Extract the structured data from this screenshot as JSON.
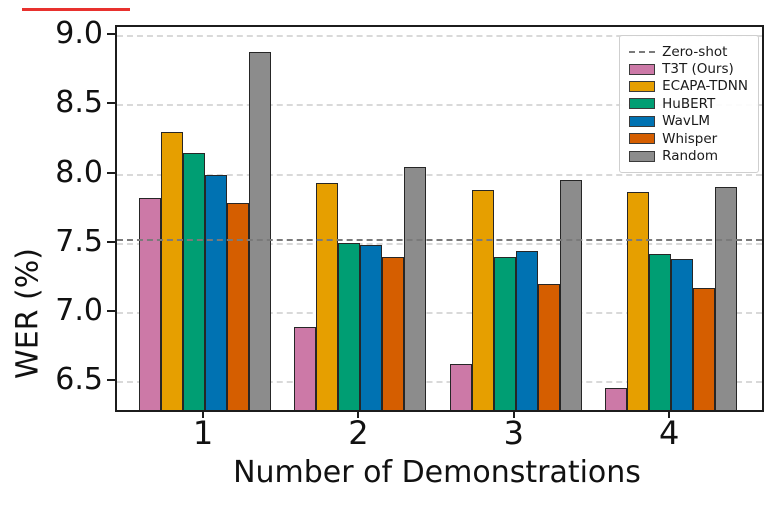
{
  "chart_data": {
    "type": "bar",
    "title": "",
    "xlabel": "Number of Demonstrations",
    "ylabel": "WER (%)",
    "categories": [
      "1",
      "2",
      "3",
      "4"
    ],
    "series": [
      {
        "name": "T3T (Ours)",
        "color": "#CC79A7",
        "values": [
          7.82,
          6.89,
          6.62,
          6.45
        ]
      },
      {
        "name": "ECAPA-TDNN",
        "color": "#E69F00",
        "values": [
          8.3,
          7.93,
          7.88,
          7.87
        ]
      },
      {
        "name": "HuBERT",
        "color": "#009E73",
        "values": [
          8.15,
          7.5,
          7.4,
          7.42
        ]
      },
      {
        "name": "WavLM",
        "color": "#0072B2",
        "values": [
          7.99,
          7.48,
          7.44,
          7.38
        ]
      },
      {
        "name": "Whisper",
        "color": "#D55E00",
        "values": [
          7.79,
          7.4,
          7.2,
          7.17
        ]
      },
      {
        "name": "Random",
        "color": "#8C8C8C",
        "values": [
          8.88,
          8.05,
          7.95,
          7.9
        ]
      }
    ],
    "reference_line": {
      "label": "Zero-shot",
      "value": 7.53,
      "color": "#7a7a7a",
      "style": "dashed"
    },
    "yticks": [
      6.5,
      7.0,
      7.5,
      8.0,
      8.5,
      9.0
    ],
    "ylim": [
      6.29,
      9.06
    ],
    "grid": true,
    "legend_position": "upper right",
    "legend_labels": [
      "Zero-shot",
      "T3T (Ours)",
      "ECAPA-TDNN",
      "HuBERT",
      "WavLM",
      "Whisper",
      "Random"
    ]
  }
}
